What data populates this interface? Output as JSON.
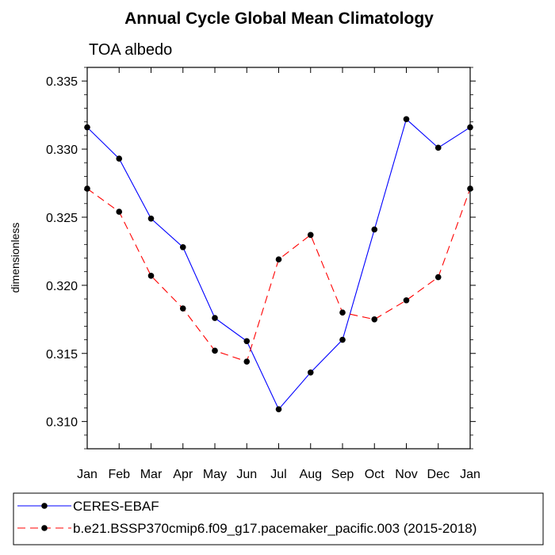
{
  "chart_data": {
    "type": "line",
    "title": "Annual Cycle Global Mean Climatology",
    "subtitle": "TOA albedo",
    "ylabel": "dimensionless",
    "xlabel": "",
    "categories": [
      "Jan",
      "Feb",
      "Mar",
      "Apr",
      "May",
      "Jun",
      "Jul",
      "Aug",
      "Sep",
      "Oct",
      "Nov",
      "Dec",
      "Jan"
    ],
    "ylim": [
      0.308,
      0.336
    ],
    "yticks": [
      0.31,
      0.315,
      0.32,
      0.325,
      0.33,
      0.335
    ],
    "ytick_labels": [
      "0.310",
      "0.315",
      "0.320",
      "0.325",
      "0.330",
      "0.335"
    ],
    "grid": false,
    "legend_position": "bottom",
    "series": [
      {
        "name": "CERES-EBAF",
        "color": "#0000ff",
        "dash": "solid",
        "values": [
          0.3316,
          0.3293,
          0.3249,
          0.3228,
          0.3176,
          0.3159,
          0.3109,
          0.3136,
          0.316,
          0.3241,
          0.3322,
          0.3301,
          0.3316
        ]
      },
      {
        "name": "b.e21.BSSP370cmip6.f09_g17.pacemaker_pacific.003 (2015-2018)",
        "color": "#ff0000",
        "dash": "dashed",
        "values": [
          0.3271,
          0.3254,
          0.3207,
          0.3183,
          0.3152,
          0.3144,
          0.3219,
          0.3237,
          0.318,
          0.3175,
          0.3189,
          0.3206,
          0.3271
        ]
      }
    ]
  }
}
